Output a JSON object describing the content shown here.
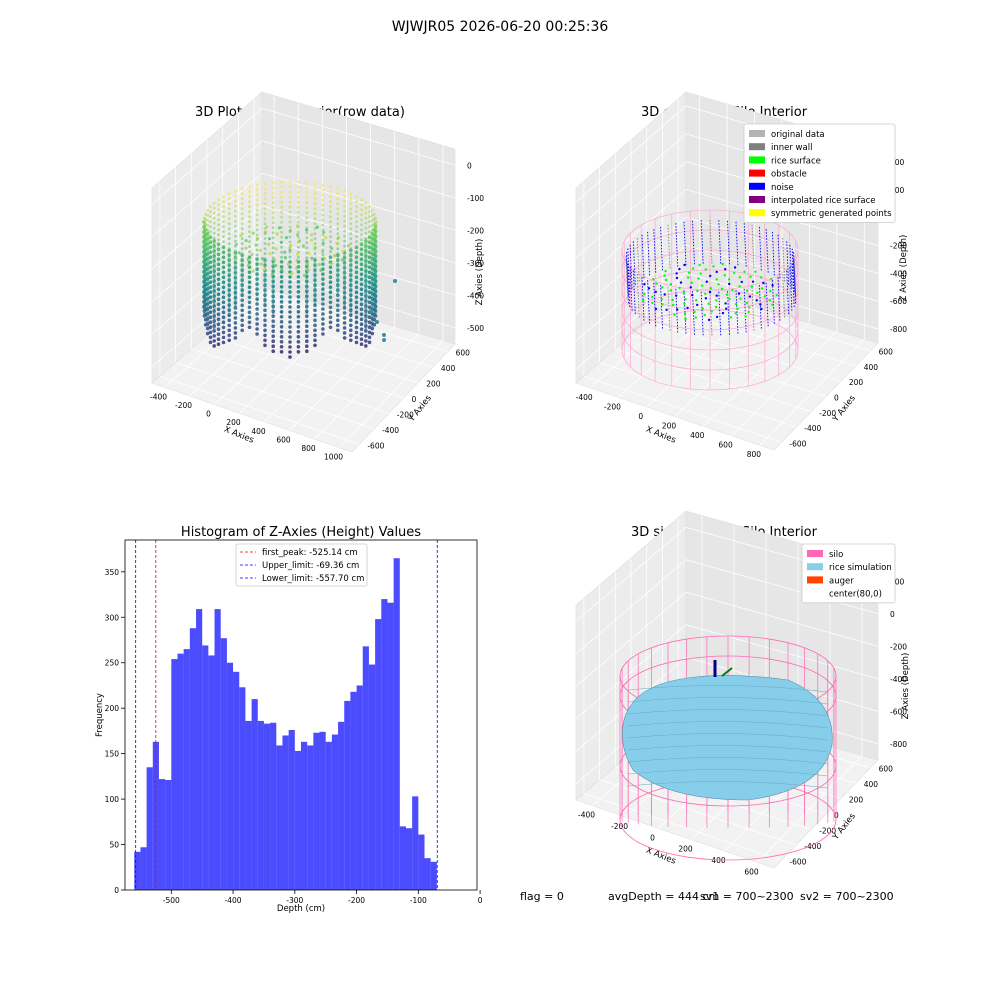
{
  "figure": {
    "title": "WJWJR05 2026-06-20 00:25:36",
    "footer": {
      "flag": "flag = 0",
      "avg_depth": "avgDepth = 444 cm",
      "sv1": "sv1 = 700~2300",
      "sv2": "sv2 = 700~2300"
    }
  },
  "panels": {
    "raw": {
      "title": "3D Plot of Silo Interior(row data)",
      "xlabel": "X Axies",
      "ylabel": "Y Axies",
      "zlabel": "Z Axies (Depth)",
      "x_ticks": [
        "-400",
        "-200",
        "0",
        "200",
        "400",
        "600",
        "800",
        "1000"
      ],
      "y_ticks": [
        "-600",
        "-400",
        "-200",
        "0",
        "200",
        "400",
        "600"
      ],
      "z_ticks": [
        "-500",
        "-400",
        "-300",
        "-200",
        "-100",
        "0"
      ],
      "colormap": "viridis"
    },
    "classify": {
      "title": "3D classify of Silo Interior",
      "xlabel": "X Axies",
      "ylabel": "Y Axies",
      "zlabel": "Z Axies (Depth)",
      "x_ticks": [
        "-400",
        "-200",
        "0",
        "200",
        "400",
        "600",
        "800"
      ],
      "y_ticks": [
        "-600",
        "-400",
        "-200",
        "0",
        "200",
        "400",
        "600"
      ],
      "z_ticks": [
        "-800",
        "-600",
        "-400",
        "-200",
        "0",
        "200",
        "400"
      ],
      "legend": [
        {
          "label": "original data",
          "color": "#b4b4b4"
        },
        {
          "label": "inner wall",
          "color": "#808080"
        },
        {
          "label": "rice surface",
          "color": "#00ff00"
        },
        {
          "label": "obstacle",
          "color": "#ff0000"
        },
        {
          "label": "noise",
          "color": "#0000ff"
        },
        {
          "label": "interpolated rice surface",
          "color": "#800080"
        },
        {
          "label": "symmetric generated points",
          "color": "#ffff00"
        }
      ]
    },
    "simulation": {
      "title": "3D simulation of Silo Interior",
      "xlabel": "X Axies",
      "ylabel": "Y Axies",
      "zlabel": "Z Axies (Depth)",
      "x_ticks": [
        "-400",
        "-200",
        "0",
        "200",
        "400",
        "600"
      ],
      "y_ticks": [
        "-600",
        "-400",
        "-200",
        "0",
        "200",
        "400",
        "600"
      ],
      "z_ticks": [
        "-800",
        "-600",
        "-400",
        "-200",
        "0",
        "200"
      ],
      "legend": [
        {
          "label": "silo",
          "color": "#ff69b4"
        },
        {
          "label": "rice simulation",
          "color": "#87ceeb"
        },
        {
          "label": "auger",
          "color": "#ff4500"
        },
        {
          "label": "center(80,0)",
          "color": ""
        }
      ]
    }
  },
  "chart_data": {
    "type": "bar",
    "title": "Histogram of Z-Axies (Height) Values",
    "xlabel": "Depth (cm)",
    "ylabel": "Frequency",
    "xlim": [
      -575,
      -5
    ],
    "ylim": [
      0,
      385
    ],
    "x_ticks": [
      -500,
      -400,
      -300,
      -200,
      -100,
      0
    ],
    "y_ticks": [
      0,
      50,
      100,
      150,
      200,
      250,
      300,
      350
    ],
    "bar_color": "#0000ff",
    "bins": [
      {
        "x0": -560,
        "x1": -550,
        "count": 42
      },
      {
        "x0": -550,
        "x1": -540,
        "count": 47
      },
      {
        "x0": -540,
        "x1": -530,
        "count": 135
      },
      {
        "x0": -530,
        "x1": -520,
        "count": 163
      },
      {
        "x0": -520,
        "x1": -510,
        "count": 122
      },
      {
        "x0": -510,
        "x1": -500,
        "count": 121
      },
      {
        "x0": -500,
        "x1": -490,
        "count": 254
      },
      {
        "x0": -490,
        "x1": -480,
        "count": 260
      },
      {
        "x0": -480,
        "x1": -470,
        "count": 265
      },
      {
        "x0": -470,
        "x1": -460,
        "count": 288
      },
      {
        "x0": -460,
        "x1": -450,
        "count": 309
      },
      {
        "x0": -450,
        "x1": -440,
        "count": 269
      },
      {
        "x0": -440,
        "x1": -430,
        "count": 258
      },
      {
        "x0": -430,
        "x1": -420,
        "count": 309
      },
      {
        "x0": -420,
        "x1": -410,
        "count": 277
      },
      {
        "x0": -410,
        "x1": -400,
        "count": 250
      },
      {
        "x0": -400,
        "x1": -390,
        "count": 240
      },
      {
        "x0": -390,
        "x1": -380,
        "count": 223
      },
      {
        "x0": -380,
        "x1": -370,
        "count": 186
      },
      {
        "x0": -370,
        "x1": -360,
        "count": 210
      },
      {
        "x0": -360,
        "x1": -350,
        "count": 186
      },
      {
        "x0": -350,
        "x1": -340,
        "count": 183
      },
      {
        "x0": -340,
        "x1": -330,
        "count": 184
      },
      {
        "x0": -330,
        "x1": -320,
        "count": 159
      },
      {
        "x0": -320,
        "x1": -310,
        "count": 170
      },
      {
        "x0": -310,
        "x1": -300,
        "count": 176
      },
      {
        "x0": -300,
        "x1": -290,
        "count": 153
      },
      {
        "x0": -290,
        "x1": -280,
        "count": 163
      },
      {
        "x0": -280,
        "x1": -270,
        "count": 159
      },
      {
        "x0": -270,
        "x1": -260,
        "count": 173
      },
      {
        "x0": -260,
        "x1": -250,
        "count": 174
      },
      {
        "x0": -250,
        "x1": -240,
        "count": 163
      },
      {
        "x0": -240,
        "x1": -230,
        "count": 171
      },
      {
        "x0": -230,
        "x1": -220,
        "count": 185
      },
      {
        "x0": -220,
        "x1": -210,
        "count": 208
      },
      {
        "x0": -210,
        "x1": -200,
        "count": 218
      },
      {
        "x0": -200,
        "x1": -190,
        "count": 225
      },
      {
        "x0": -190,
        "x1": -180,
        "count": 268
      },
      {
        "x0": -180,
        "x1": -170,
        "count": 248
      },
      {
        "x0": -170,
        "x1": -160,
        "count": 298
      },
      {
        "x0": -160,
        "x1": -150,
        "count": 320
      },
      {
        "x0": -150,
        "x1": -140,
        "count": 316
      },
      {
        "x0": -140,
        "x1": -130,
        "count": 365
      },
      {
        "x0": -130,
        "x1": -120,
        "count": 70
      },
      {
        "x0": -120,
        "x1": -110,
        "count": 68
      },
      {
        "x0": -110,
        "x1": -100,
        "count": 103
      },
      {
        "x0": -100,
        "x1": -90,
        "count": 61
      },
      {
        "x0": -90,
        "x1": -80,
        "count": 35
      },
      {
        "x0": -80,
        "x1": -70,
        "count": 31
      }
    ],
    "vlines": [
      {
        "value": -525.14,
        "color": "#ff0000",
        "label": "first_peak: -525.14 cm"
      },
      {
        "value": -69.36,
        "color": "#0000ff",
        "label": "Upper_limit: -69.36 cm"
      },
      {
        "value": -557.7,
        "color": "#0000ff",
        "label": "Lower_limit: -557.70 cm"
      }
    ],
    "legend_position": "upper-center"
  }
}
